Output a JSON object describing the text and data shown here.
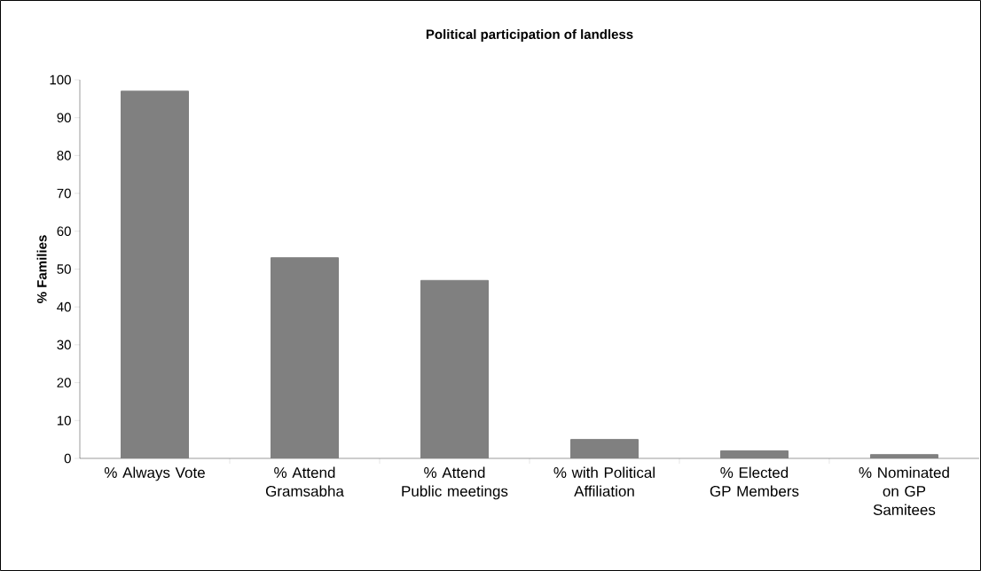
{
  "chart_data": {
    "type": "bar",
    "title": "Political participation of landless",
    "ylabel": "% Families",
    "categories": [
      "% Always Vote",
      "% Attend Gramsabha",
      "% Attend Public meetings",
      "% with Political Affiliation",
      "% Elected GP Members",
      "% Nominated on GP Samitees"
    ],
    "values": [
      97,
      53,
      47,
      5,
      2,
      1
    ],
    "color": "#808080",
    "ylim": [
      0,
      100
    ],
    "yticks": [
      0,
      10,
      20,
      30,
      40,
      50,
      60,
      70,
      80,
      90,
      100
    ],
    "grid": false
  }
}
